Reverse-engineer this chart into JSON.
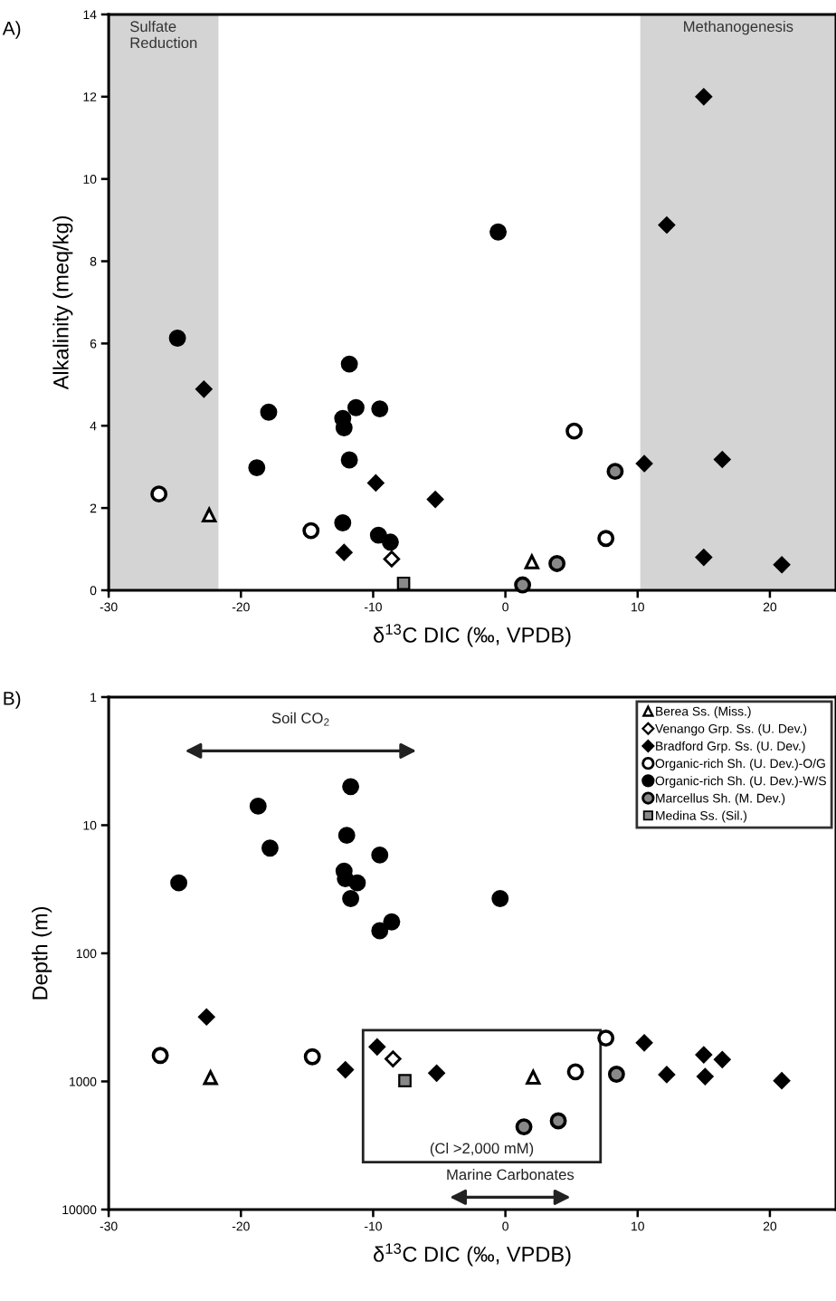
{
  "chart_data": [
    {
      "type": "scatter",
      "title": "A)",
      "xlabel": "δ$^{13}$C DIC (‰, VPDB)",
      "ylabel": "Alkalinity (meq/kg)",
      "xlim": [
        -30,
        25
      ],
      "xticks": [
        -30,
        -20,
        -10,
        0,
        10,
        20
      ],
      "ylim": [
        0,
        14
      ],
      "yticks": [
        0,
        2,
        4,
        6,
        8,
        10,
        12,
        14
      ],
      "grid": false,
      "legend": false,
      "bands": [
        {
          "axis": "x",
          "from": -30,
          "to": -21.7,
          "label": "Sulfate\nReduction",
          "color": "#d4d4d4"
        },
        {
          "axis": "x",
          "from": 10.2,
          "to": 25,
          "label": "Methanogenesis",
          "color": "#d4d4d4"
        }
      ],
      "series": [
        {
          "marker": "triangle",
          "color": "#ffffff",
          "x": [
            -22.4,
            2.0
          ],
          "values": [
            1.83,
            0.69
          ]
        },
        {
          "marker": "diamond",
          "color": "#ffffff",
          "x": [
            -8.6
          ],
          "values": [
            0.76
          ]
        },
        {
          "marker": "diamond",
          "color": "#000000",
          "x": [
            -22.8,
            -9.8,
            -5.3,
            -12.2,
            15.0,
            12.2,
            10.5,
            16.4,
            15.0,
            20.9
          ],
          "values": [
            4.89,
            2.61,
            2.21,
            0.92,
            12.0,
            8.88,
            3.08,
            3.18,
            0.8,
            0.62
          ]
        },
        {
          "marker": "circle",
          "color": "#ffffff",
          "x": [
            -26.2,
            -14.7,
            5.2,
            7.6
          ],
          "values": [
            2.34,
            1.45,
            3.87,
            1.26
          ]
        },
        {
          "marker": "circle",
          "color": "#000000",
          "x": [
            -24.8,
            -11.8,
            -17.9,
            -11.3,
            -9.5,
            -12.3,
            -12.2,
            -11.8,
            -18.8,
            -12.3,
            -9.6,
            -8.7,
            -0.55
          ],
          "values": [
            6.13,
            5.5,
            4.33,
            4.44,
            4.41,
            4.18,
            3.95,
            3.17,
            2.98,
            1.64,
            1.34,
            1.17,
            8.71
          ]
        },
        {
          "marker": "circle",
          "color": "#888888",
          "x": [
            8.3,
            3.9,
            1.3
          ],
          "values": [
            2.89,
            0.65,
            0.13
          ]
        },
        {
          "marker": "square",
          "color": "#888888",
          "x": [
            -7.7
          ],
          "values": [
            0.17
          ]
        }
      ]
    },
    {
      "type": "scatter",
      "title": "B)",
      "xlabel": "δ$^{13}$C DIC (‰, VPDB)",
      "ylabel": "Depth (m)",
      "xlim": [
        -30,
        25
      ],
      "xticks": [
        -30,
        -20,
        -10,
        0,
        10,
        20
      ],
      "ylim": [
        10000,
        1
      ],
      "yticks": [
        1,
        10,
        100,
        1000,
        10000
      ],
      "log": "y",
      "grid": false,
      "legend": "top right",
      "annotations": [
        "Soil CO$_{2}$",
        "(Cl >2,000 mM)",
        "Marine Carbonates"
      ],
      "series": [
        {
          "name": "Berea Ss. (Miss.)",
          "marker": "triangle",
          "color": "#ffffff",
          "x": [
            -22.3,
            2.1
          ],
          "values": [
            934,
            927
          ]
        },
        {
          "name": "Venango Grp. Ss. (U. Dev.)",
          "marker": "diamond",
          "color": "#ffffff",
          "x": [
            -8.5
          ],
          "values": [
            667
          ]
        },
        {
          "name": "Bradford Grp. Ss. (U. Dev.)",
          "marker": "diamond",
          "color": "#000000",
          "x": [
            -22.6,
            -9.7,
            -12.1,
            -5.2,
            10.5,
            15.0,
            16.4,
            12.2,
            15.1,
            20.9
          ],
          "values": [
            314,
            538,
            811,
            862,
            500,
            620,
            675,
            884,
            916,
            987
          ]
        },
        {
          "name": "Organic-rich Sh. (U. Dev.)-O/G",
          "marker": "circle",
          "color": "#ffffff",
          "x": [
            -26.1,
            -14.6,
            5.3,
            7.6
          ],
          "values": [
            627,
            642,
            841,
            459
          ]
        },
        {
          "name": "Organic-rich Sh. (U. Dev.)-W/S",
          "marker": "circle",
          "color": "#000000",
          "x": [
            -11.7,
            -18.7,
            -12.0,
            -17.8,
            -9.5,
            -12.2,
            -12.1,
            -11.2,
            -24.7,
            -11.7,
            -8.6,
            -9.5,
            -0.4
          ],
          "values": [
            5.0,
            7.1,
            12.0,
            15.1,
            17.1,
            22.8,
            26.2,
            28.2,
            28.2,
            37.4,
            56.8,
            66.6,
            37.4
          ]
        },
        {
          "name": "Marcellus Sh. (M. Dev.)",
          "marker": "circle",
          "color": "#888888",
          "x": [
            1.4,
            4.0,
            8.4
          ],
          "values": [
            2260,
            2030,
            879
          ]
        },
        {
          "name": "Medina Ss. (Sil.)",
          "marker": "square",
          "color": "#888888",
          "x": [
            -7.6
          ],
          "values": [
            987
          ]
        }
      ]
    }
  ]
}
